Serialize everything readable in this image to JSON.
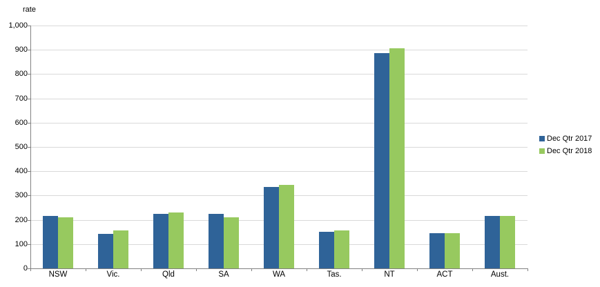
{
  "chart_data": {
    "type": "bar",
    "title": "",
    "ylabel": "rate",
    "xlabel": "",
    "ylim": [
      0,
      1000
    ],
    "ytick_step": 100,
    "ytick_labels": [
      "0",
      "100",
      "200",
      "300",
      "400",
      "500",
      "600",
      "700",
      "800",
      "900",
      "1,000"
    ],
    "grid": true,
    "legend_position": "right",
    "categories": [
      "NSW",
      "Vic.",
      "Qld",
      "SA",
      "WA",
      "Tas.",
      "NT",
      "ACT",
      "Aust."
    ],
    "series": [
      {
        "name": "Dec Qtr 2017",
        "color": "#2F6398",
        "values": [
          215,
          142,
          224,
          225,
          335,
          152,
          885,
          145,
          215
        ]
      },
      {
        "name": "Dec Qtr 2018",
        "color": "#97C95F",
        "values": [
          211,
          157,
          229,
          209,
          343,
          156,
          905,
          146,
          217
        ]
      }
    ]
  },
  "colors": {
    "background": "#FFFFFF",
    "gridline": "#D9D9D9",
    "axis": "#808080",
    "text": "#000000"
  }
}
